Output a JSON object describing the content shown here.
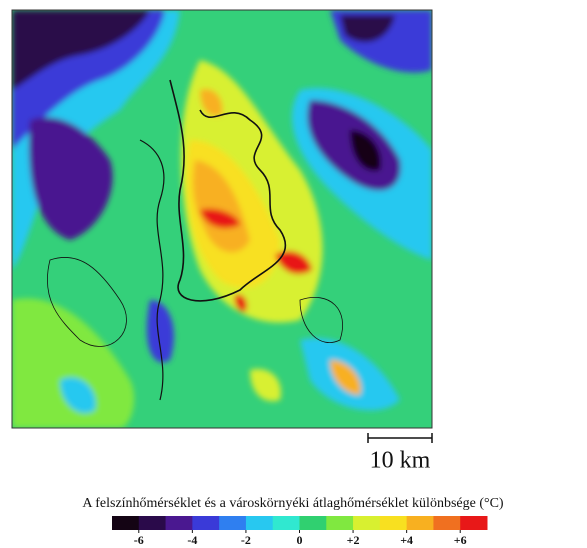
{
  "map": {
    "scale_bar_label": "10 km"
  },
  "legend": {
    "title": "A felszínhőmérséklet és a városkörnyéki átlaghőmérséklet különbsége (°C)",
    "range": [
      -7,
      7
    ],
    "ticks": [
      -6,
      -4,
      -2,
      0,
      {
        "value": 2,
        "label": "+2"
      },
      {
        "value": 4,
        "label": "+4"
      },
      {
        "value": 6,
        "label": "+6"
      }
    ],
    "colors": [
      "#140414",
      "#2a0a4a",
      "#4a1890",
      "#3a3ad8",
      "#2f7ff0",
      "#28c8f0",
      "#30e8d0",
      "#30d070",
      "#80e840",
      "#d8f030",
      "#f8e020",
      "#f8b020",
      "#f07020",
      "#e81818"
    ]
  }
}
